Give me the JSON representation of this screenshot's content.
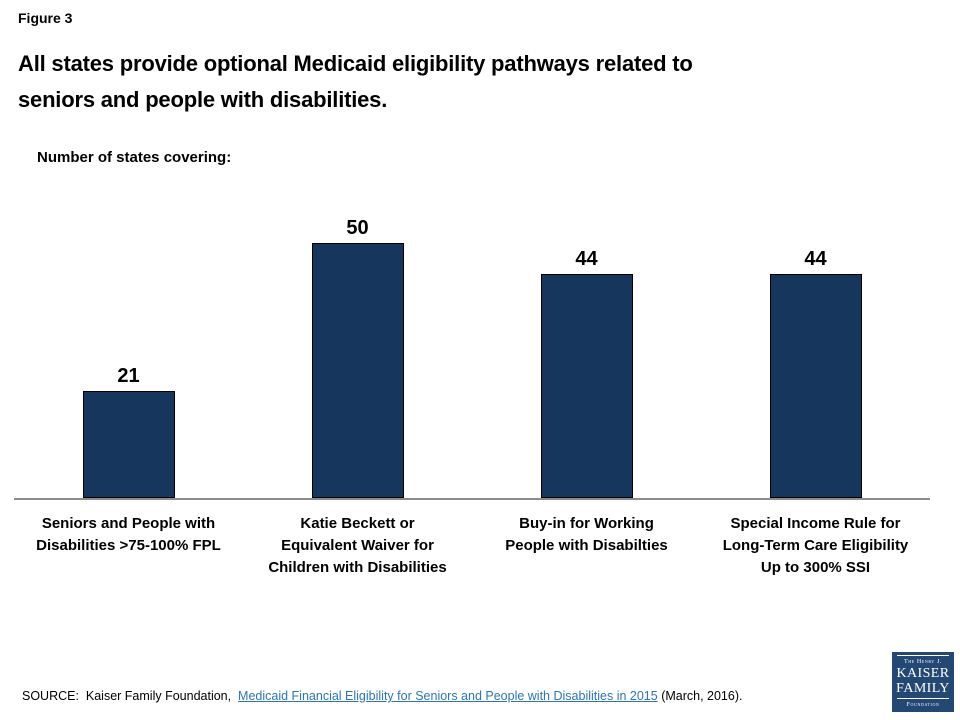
{
  "figure_label": "Figure 3",
  "title": "All states provide optional Medicaid eligibility pathways related to\nseniors and people with disabilities.",
  "subtitle": "Number of states covering:",
  "chart_data": {
    "type": "bar",
    "title": "Number of states covering:",
    "categories": [
      "Seniors and People with\nDisabilities >75-100% FPL",
      "Katie Beckett or\nEquivalent Waiver for\nChildren with Disabilities",
      "Buy-in for Working\nPeople with Disabilties",
      "Special Income Rule for\nLong-Term Care Eligibility\nUp to 300% SSI"
    ],
    "values": [
      21,
      50,
      44,
      44
    ],
    "xlabel": "",
    "ylabel": "",
    "ylim": [
      0,
      50
    ],
    "grid": false,
    "legend": "none",
    "data_labels": true,
    "bar_color": "#17365D",
    "bar_border_color": "#000000",
    "axis_line_color": "#8C8C8C"
  },
  "source": {
    "prefix": "SOURCE:  Kaiser Family Foundation,  ",
    "link_text": "Medicaid Financial Eligibility for Seniors and People with Disabilities in 2015",
    "suffix": " (March, 2016).",
    "link_color": "#2E75B6"
  },
  "logo": {
    "line1": "The Henry J.",
    "line2": "KAISER",
    "line3": "FAMILY",
    "line4": "Foundation",
    "bg_color": "#234873"
  }
}
